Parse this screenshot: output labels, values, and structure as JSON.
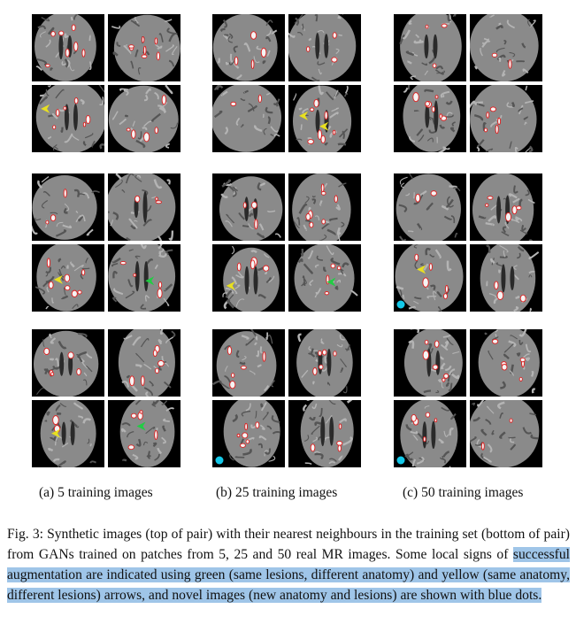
{
  "figure": {
    "marker_colors": {
      "green": "#22cc44",
      "yellow": "#e8e020",
      "blue": "#13c8e8",
      "lesion": "#e02020"
    },
    "columns": [
      {
        "id": "a",
        "caption": "(a) 5 training images",
        "panels": [
          {
            "markers": [
              {
                "tile": 2,
                "type": "yellow-arrow-icon"
              }
            ]
          },
          {
            "markers": [
              {
                "tile": 2,
                "type": "yellow-arrow-icon"
              },
              {
                "tile": 3,
                "type": "green-arrow-icon"
              }
            ]
          },
          {
            "markers": [
              {
                "tile": 2,
                "type": "yellow-arrow-icon"
              },
              {
                "tile": 3,
                "type": "green-arrow-icon"
              }
            ]
          }
        ]
      },
      {
        "id": "b",
        "caption": "(b) 25 training images",
        "panels": [
          {
            "markers": [
              {
                "tile": 3,
                "type": "yellow-arrow-icon"
              },
              {
                "tile": 3,
                "type": "yellow-arrow-icon"
              }
            ]
          },
          {
            "markers": [
              {
                "tile": 2,
                "type": "yellow-arrow-icon"
              },
              {
                "tile": 3,
                "type": "green-arrow-icon"
              }
            ]
          },
          {
            "markers": [
              {
                "tile": 2,
                "type": "blue-dot-icon"
              }
            ]
          }
        ]
      },
      {
        "id": "c",
        "caption": "(c) 50 training images",
        "panels": [
          {
            "markers": []
          },
          {
            "markers": [
              {
                "tile": 2,
                "type": "yellow-arrow-icon"
              },
              {
                "tile": 2,
                "type": "blue-dot-icon"
              }
            ]
          },
          {
            "markers": [
              {
                "tile": 2,
                "type": "blue-dot-icon"
              }
            ]
          }
        ]
      }
    ]
  },
  "caption": {
    "lead": "Fig. 3: Synthetic images (top of pair) with their nearest neighbours in the training set (bottom of pair) from GANs trained on patches from 5, 25 and 50 real MR images. Some local signs of ",
    "highlighted": "successful augmentation are indicated using green (same lesions, different anatomy) and yellow (same anatomy, different lesions) arrows, and novel images (new anatomy and lesions) are shown with blue dots."
  }
}
